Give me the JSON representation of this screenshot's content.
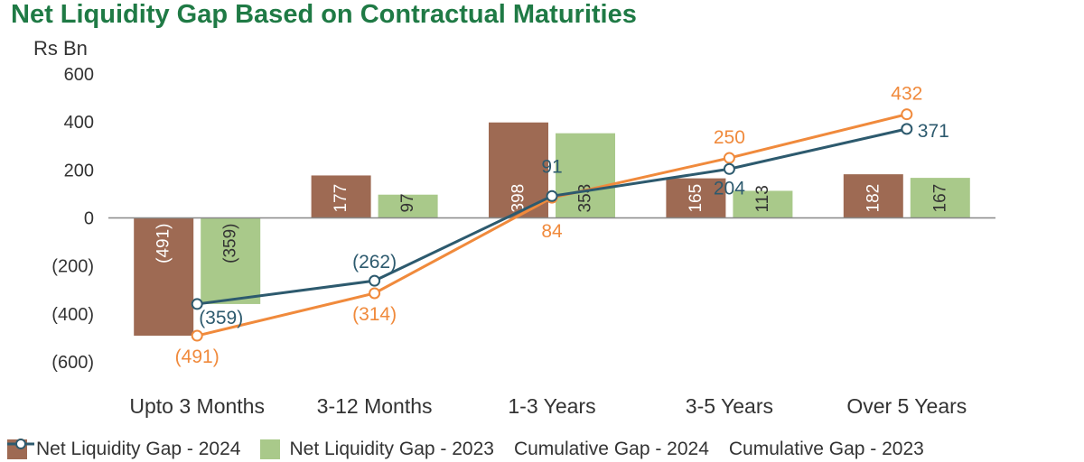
{
  "chart_data": {
    "type": "bar",
    "title": "Net Liquidity Gap Based on Contractual Maturities",
    "ylabel": "Rs Bn",
    "ylim": [
      -600,
      600
    ],
    "yticks": [
      600,
      400,
      200,
      0,
      -200,
      -400,
      -600
    ],
    "ytick_labels": [
      "600",
      "400",
      "200",
      "0",
      "(200)",
      "(400)",
      "(600)"
    ],
    "categories": [
      "Upto 3 Months",
      "3-12 Months",
      "1-3 Years",
      "3-5 Years",
      "Over 5 Years"
    ],
    "grid": false,
    "legend": "bottom",
    "series": [
      {
        "name": "Net Liquidity Gap - 2024",
        "kind": "bar",
        "color": "#9e6a53",
        "values": [
          -491,
          177,
          398,
          165,
          182
        ],
        "labels": [
          "(491)",
          "177",
          "398",
          "165",
          "182"
        ]
      },
      {
        "name": "Net Liquidity Gap - 2023",
        "kind": "bar",
        "color": "#a9c98a",
        "values": [
          -359,
          97,
          353,
          113,
          167
        ],
        "labels": [
          "(359)",
          "97",
          "353",
          "113",
          "167"
        ]
      },
      {
        "name": "Cumulative Gap - 2024",
        "kind": "line",
        "color": "#f08a3c",
        "values": [
          -491,
          -314,
          84,
          250,
          432
        ],
        "labels": [
          "(491)",
          "(314)",
          "84",
          "250",
          "432"
        ]
      },
      {
        "name": "Cumulative Gap - 2023",
        "kind": "line",
        "color": "#2d5a6e",
        "values": [
          -359,
          -262,
          91,
          204,
          371
        ],
        "labels": [
          "(359)",
          "(262)",
          "91",
          "204",
          "371"
        ]
      }
    ]
  }
}
